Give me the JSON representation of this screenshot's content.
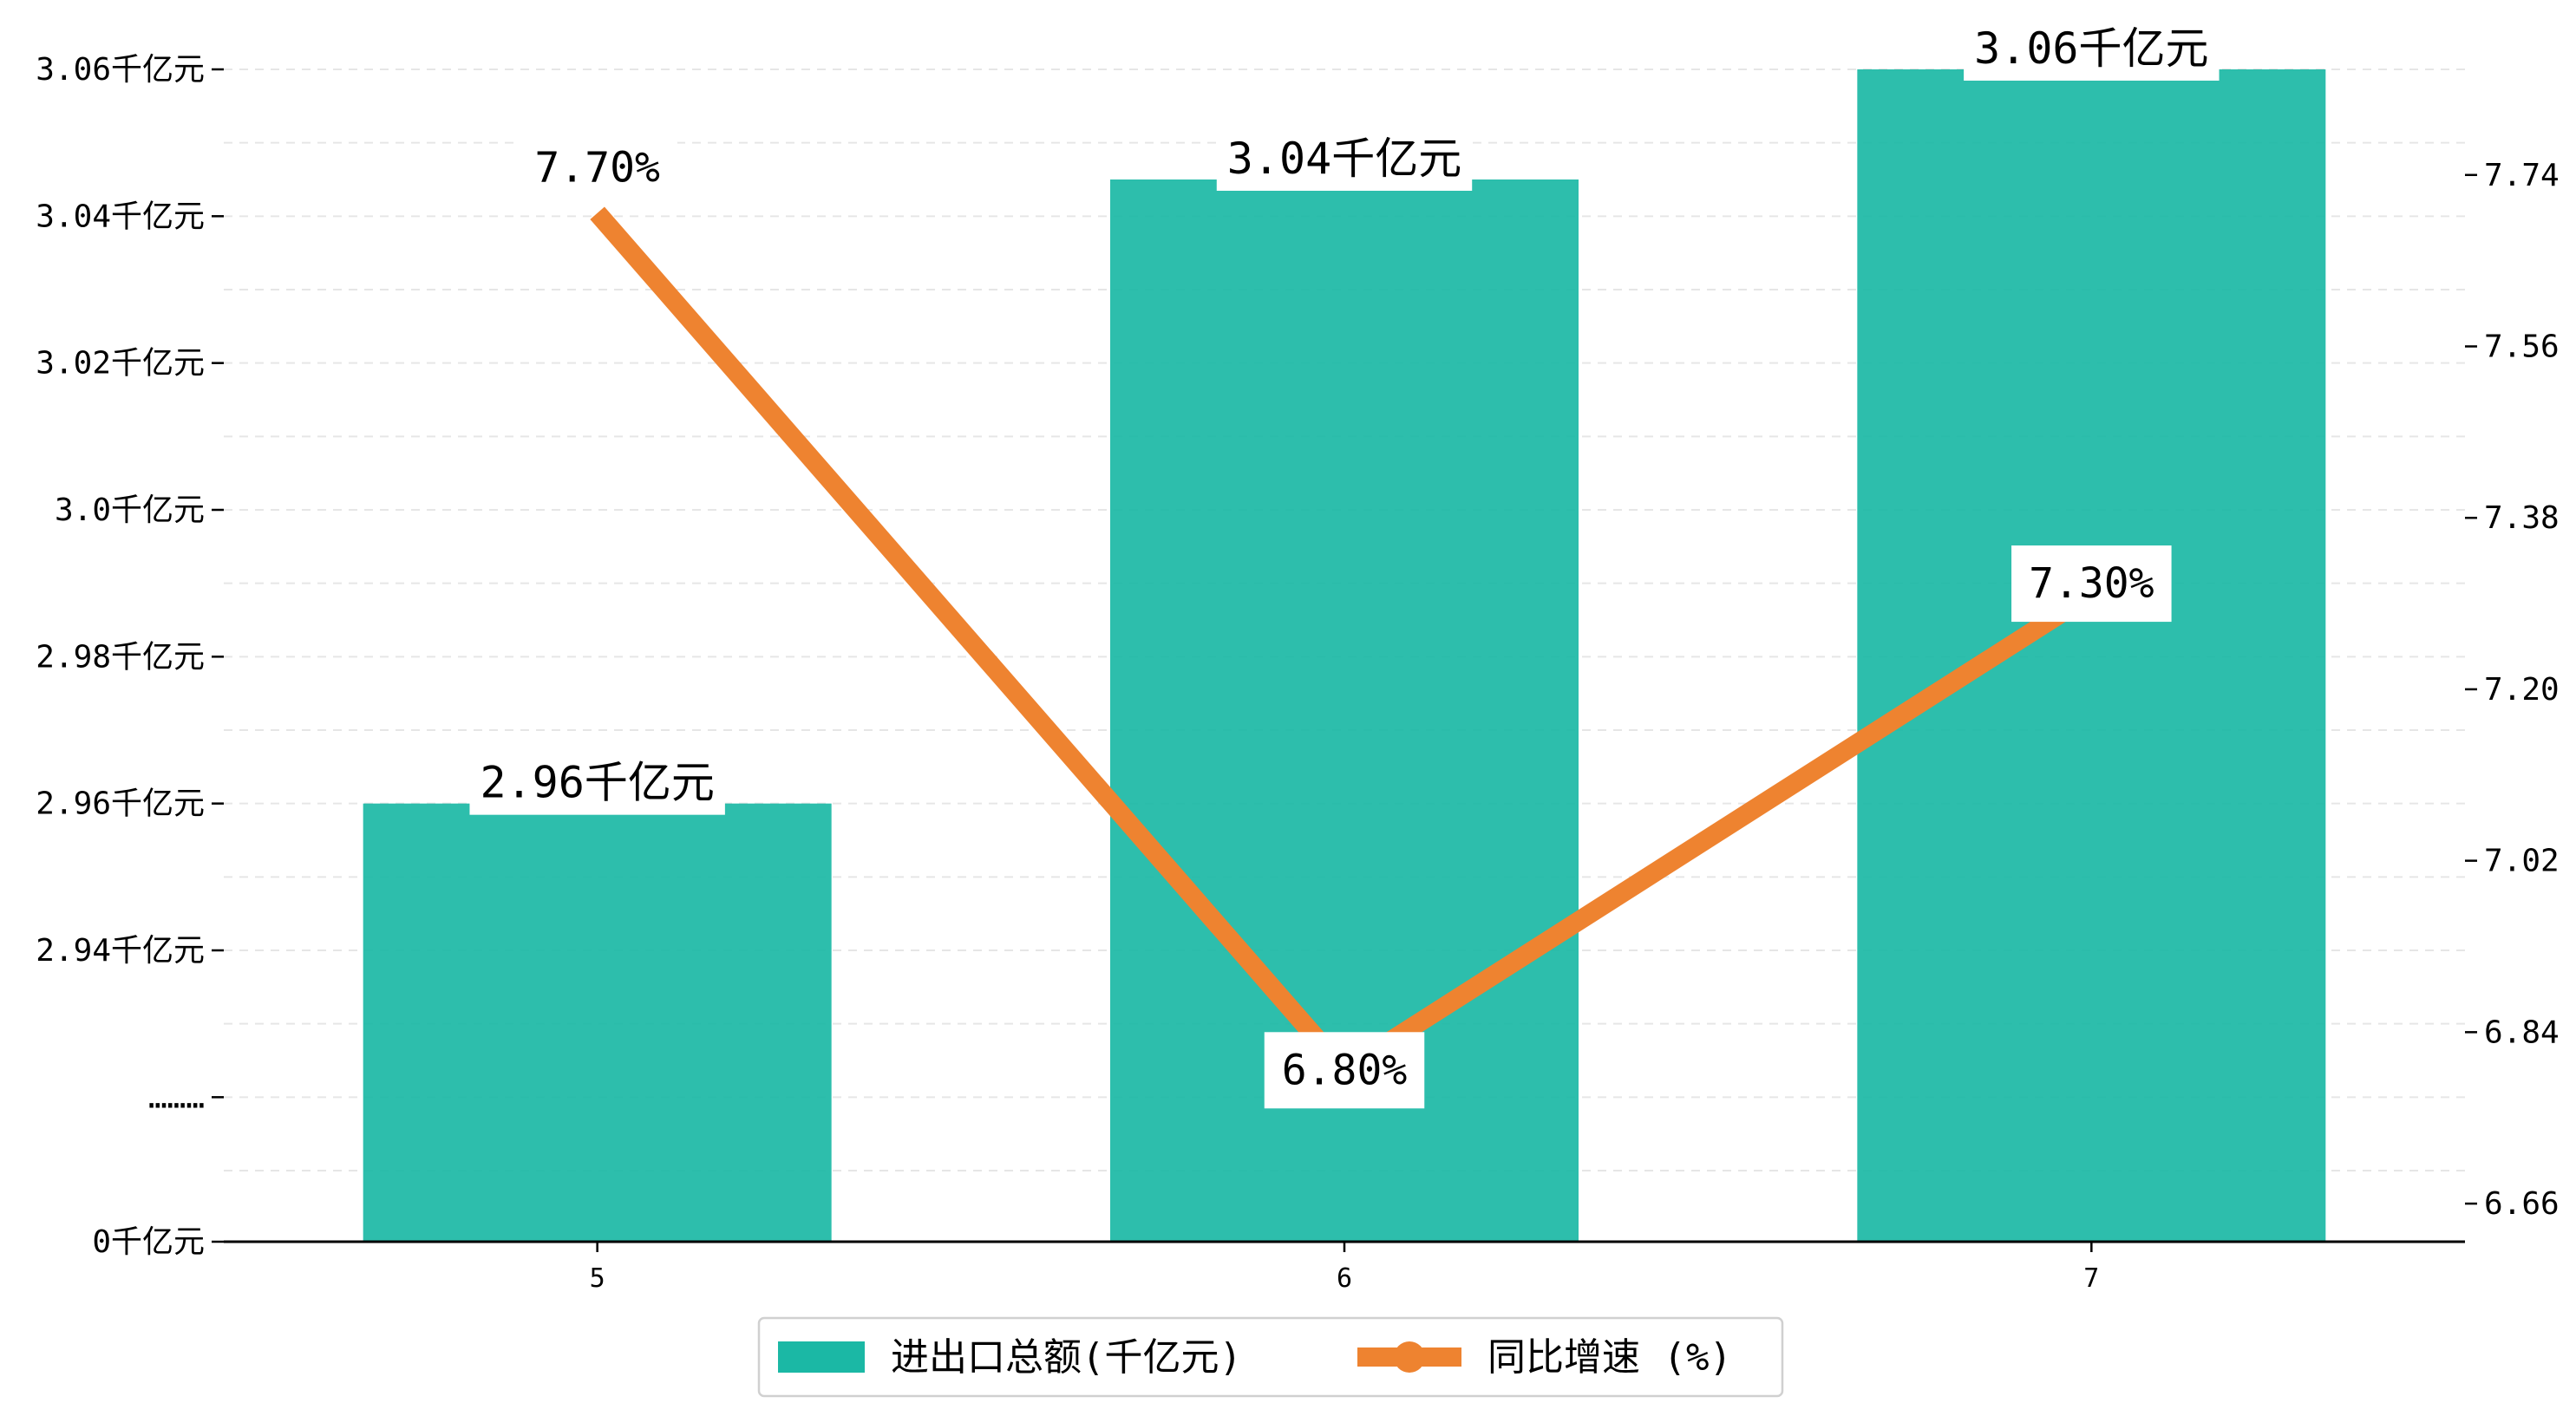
{
  "chart_data": {
    "type": "bar",
    "categories": [
      "5",
      "6",
      "7"
    ],
    "series": [
      {
        "name": "进出口总额(千亿元)",
        "type": "bar",
        "axis": "left",
        "values": [
          2.96,
          3.045,
          3.06
        ],
        "labels": [
          "2.96千亿元",
          "3.04千亿元",
          "3.06千亿元"
        ],
        "color": "#1bb8a5"
      },
      {
        "name": "同比增速 (%)",
        "type": "line",
        "axis": "right",
        "values": [
          7.7,
          6.8,
          7.3
        ],
        "labels": [
          "7.70%",
          "6.80%",
          "7.30%"
        ],
        "color": "#ee8330"
      }
    ],
    "left_axis": {
      "ticks": [
        {
          "value": 3.06,
          "label": "3.06千亿元"
        },
        {
          "value": 3.04,
          "label": "3.04千亿元"
        },
        {
          "value": 3.02,
          "label": "3.02千亿元"
        },
        {
          "value": 3.0,
          "label": "3.0千亿元"
        },
        {
          "value": 2.98,
          "label": "2.98千亿元"
        },
        {
          "value": 2.96,
          "label": "2.96千亿元"
        },
        {
          "value": 2.94,
          "label": "2.94千亿元"
        },
        {
          "value": null,
          "label": "………"
        },
        {
          "value": 0,
          "label": "0千亿元"
        }
      ],
      "broken": true
    },
    "right_axis": {
      "ticks": [
        7.74,
        7.56,
        7.38,
        7.2,
        7.02,
        6.84,
        6.66
      ],
      "ylim": [
        6.62,
        7.88
      ]
    },
    "grid": "horizontal-dashed",
    "legend_position": "bottom-center"
  }
}
